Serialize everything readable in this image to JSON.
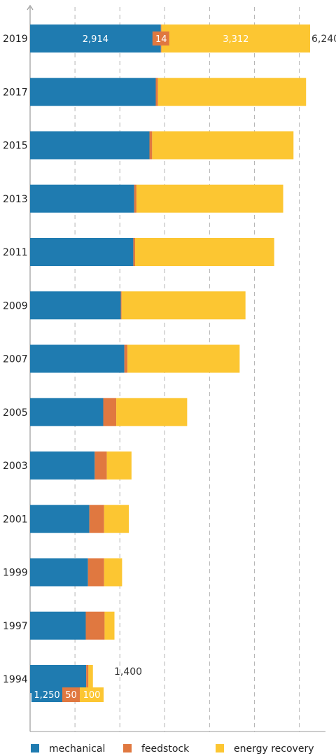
{
  "chart_data": {
    "type": "bar",
    "orientation": "horizontal",
    "stacked": true,
    "categories": [
      "2019",
      "2017",
      "2015",
      "2013",
      "2011",
      "2009",
      "2007",
      "2005",
      "2003",
      "2001",
      "1999",
      "1997",
      "1994"
    ],
    "series": [
      {
        "name": "mechanical",
        "color": "#1f7bb0",
        "values": [
          2914,
          2800,
          2660,
          2320,
          2300,
          2020,
          2100,
          1630,
          1440,
          1320,
          1290,
          1240,
          1250
        ]
      },
      {
        "name": "feedstock",
        "color": "#e07840",
        "values": [
          14,
          50,
          60,
          50,
          40,
          20,
          70,
          290,
          270,
          330,
          360,
          420,
          50
        ]
      },
      {
        "name": "energy recovery",
        "color": "#fcc632",
        "values": [
          3312,
          3300,
          3150,
          3270,
          3100,
          2760,
          2500,
          1580,
          550,
          550,
          400,
          220,
          100
        ]
      }
    ],
    "totals": {
      "2019": "6,240",
      "1994": "1,400"
    },
    "data_labels": {
      "2019": [
        "2,914",
        "14",
        "3,312"
      ],
      "1994": [
        "1,250",
        "50",
        "100"
      ]
    },
    "xlim": [
      0,
      7000
    ],
    "grid": true,
    "legend_position": "bottom"
  }
}
